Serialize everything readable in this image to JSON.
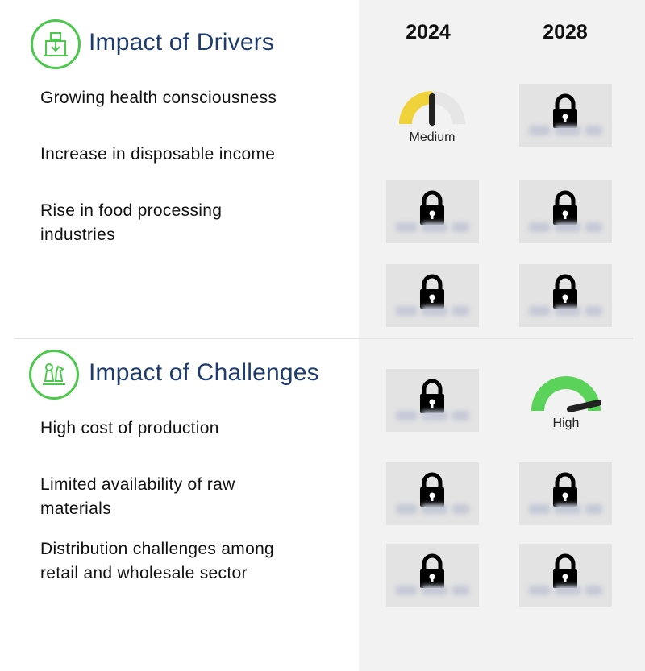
{
  "years": [
    "2024",
    "2028"
  ],
  "drivers": {
    "title": "Impact of Drivers",
    "icon": "factory-icon",
    "rows": [
      "Growing health consciousness",
      "Increase in disposable income",
      "Rise in food processing industries"
    ],
    "values_2024": [
      "Medium",
      "locked",
      "locked"
    ],
    "values_2028": [
      "locked",
      "locked",
      "locked"
    ]
  },
  "challenges": {
    "title": "Impact of Challenges",
    "icon": "chess-pieces-icon",
    "rows": [
      "High cost of production",
      "Limited availability of raw materials",
      "Distribution challenges among retail and wholesale sector"
    ],
    "values_2024": [
      "locked",
      "locked",
      "locked"
    ],
    "values_2028": [
      "High",
      "locked",
      "locked"
    ]
  },
  "colors": {
    "accent_green": "#4cc94c",
    "title_navy": "#1f3c6e",
    "medium_yellow": "#f0d23a",
    "high_green": "#5bd35b"
  }
}
